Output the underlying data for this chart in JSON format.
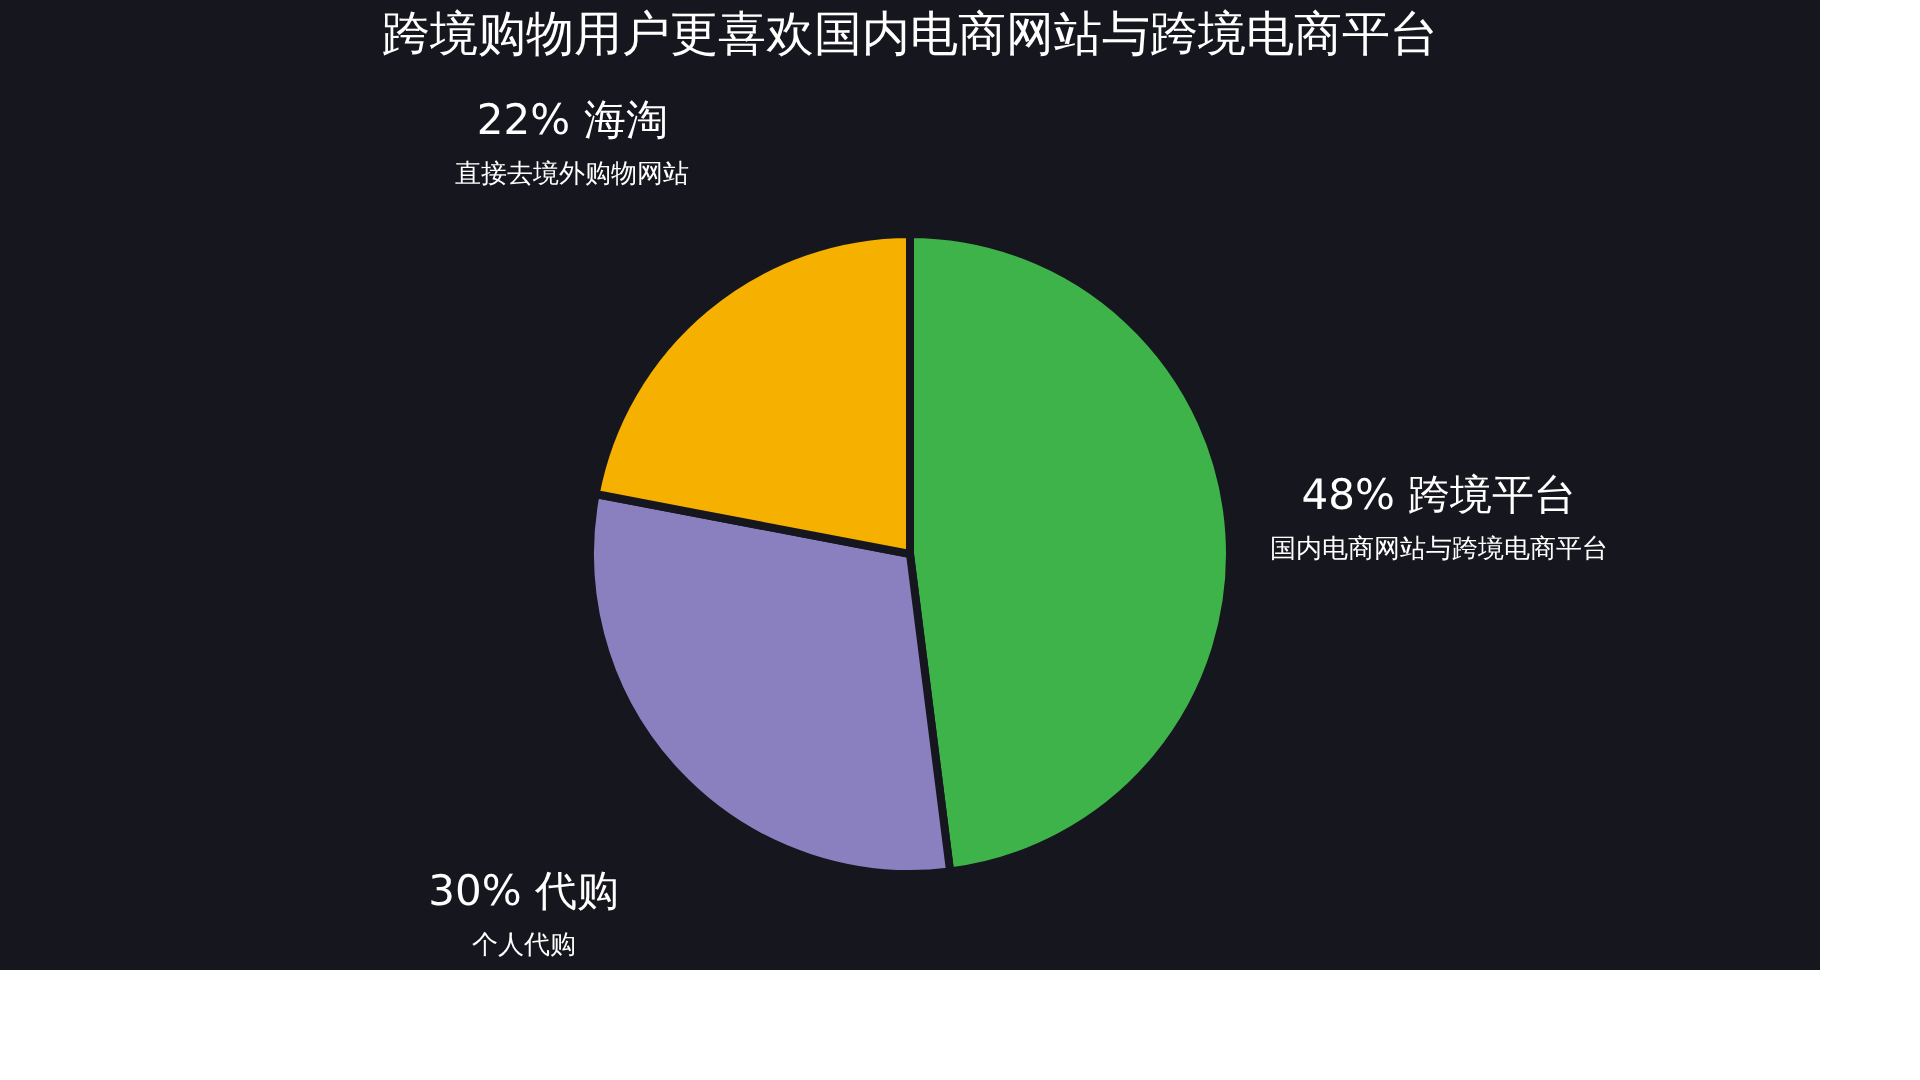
{
  "chart_data": {
    "type": "pie",
    "title": "跨境购物用户更喜欢国内电商网站与跨境电商平台",
    "categories": [
      "跨境平台",
      "代购",
      "海淘"
    ],
    "values": [
      48,
      30,
      22
    ],
    "value_labels": [
      "48%",
      "30%",
      "22%"
    ],
    "colors": [
      "#3db34a",
      "#8a80bf",
      "#f5b000"
    ],
    "annotations": [
      "国内电商网站与跨境电商平台",
      "个人代购",
      "直接去境外购物网站"
    ]
  }
}
